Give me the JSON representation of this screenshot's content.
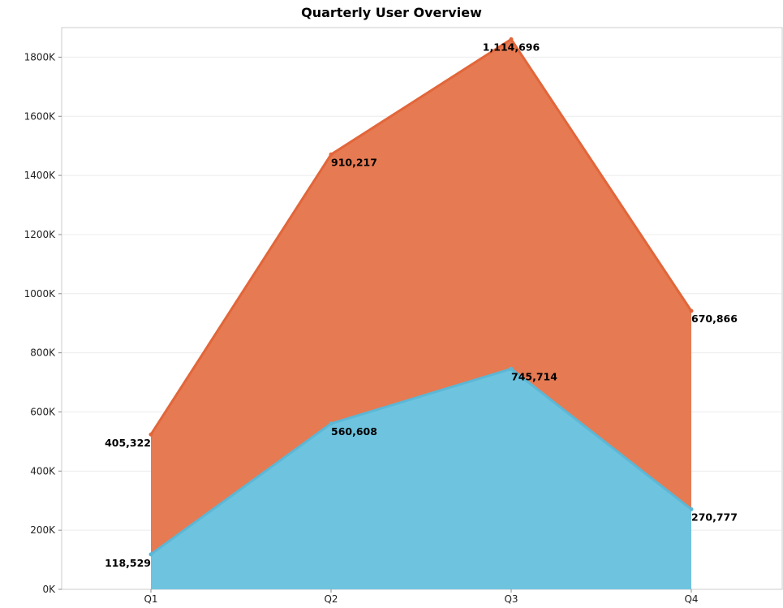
{
  "chart_data": {
    "type": "area",
    "stacked": true,
    "title": "Quarterly User Overview",
    "xlabel": "",
    "ylabel": "",
    "categories": [
      "Q1",
      "Q2",
      "Q3",
      "Q4"
    ],
    "ylim": [
      0,
      1900000
    ],
    "yticks": [
      {
        "value": 0,
        "label": "0K"
      },
      {
        "value": 200000,
        "label": "200K"
      },
      {
        "value": 400000,
        "label": "400K"
      },
      {
        "value": 600000,
        "label": "600K"
      },
      {
        "value": 800000,
        "label": "800K"
      },
      {
        "value": 1000000,
        "label": "1000K"
      },
      {
        "value": 1200000,
        "label": "1200K"
      },
      {
        "value": 1400000,
        "label": "1400K"
      },
      {
        "value": 1600000,
        "label": "1600K"
      },
      {
        "value": 1800000,
        "label": "1800K"
      }
    ],
    "grid": true,
    "legend": "none",
    "series": [
      {
        "values": [
          118529,
          560608,
          745714,
          270777
        ],
        "labels": [
          "118,529",
          "560,608",
          "745,714",
          "270,777"
        ],
        "color": "#6ec3df",
        "line_color": "#5bb7d6"
      },
      {
        "values": [
          405322,
          910217,
          1114696,
          670866
        ],
        "labels": [
          "405,322",
          "910,217",
          "1,114,696",
          "670,866"
        ],
        "color": "#e67a52",
        "line_color": "#e2663a"
      }
    ]
  }
}
